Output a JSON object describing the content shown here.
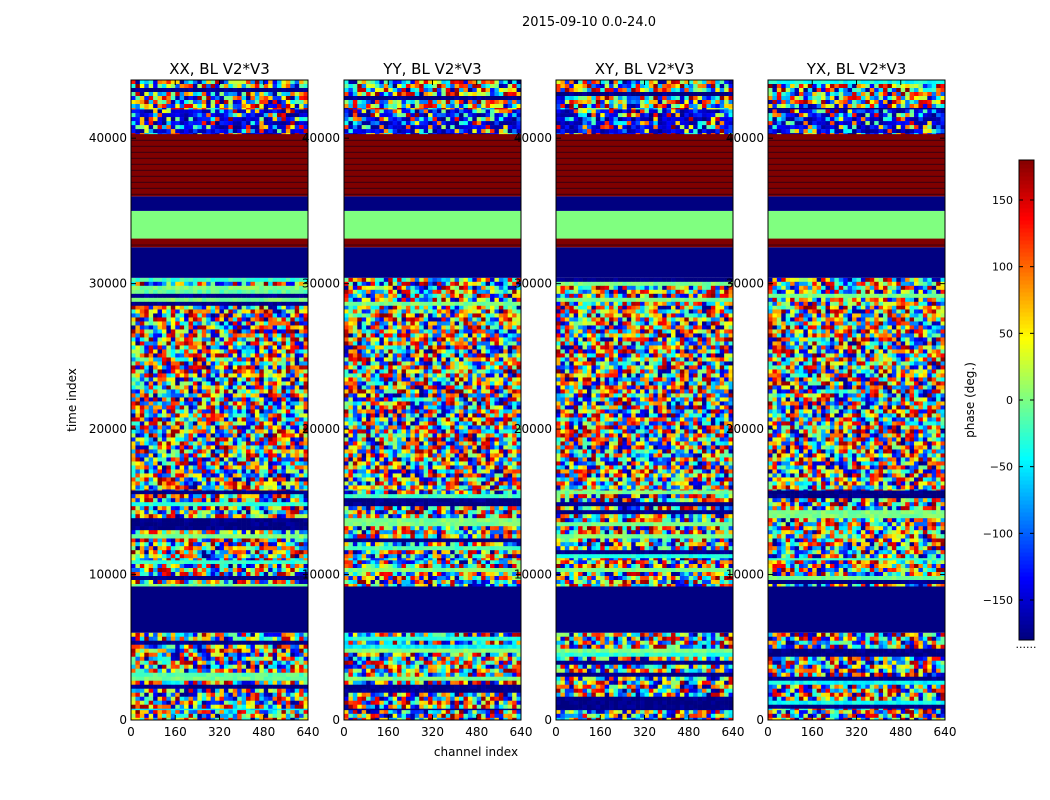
{
  "chart_data": {
    "type": "heatmap",
    "title": "2015-09-10 0.0-24.0",
    "xlabel": "channel index",
    "ylabel": "time index",
    "xlim": [
      0,
      640
    ],
    "ylim": [
      0,
      44000
    ],
    "x_ticks": [
      "0",
      "160",
      "320",
      "480",
      "640"
    ],
    "y_ticks": [
      "0",
      "10000",
      "20000",
      "30000",
      "40000"
    ],
    "x_tick_values": [
      0,
      160,
      320,
      480,
      640
    ],
    "y_tick_values": [
      0,
      10000,
      20000,
      30000,
      40000
    ],
    "colormap": "jet",
    "colorbar": {
      "label": "phase (deg.)",
      "range": [
        -180,
        180
      ],
      "ticks": [
        "−150",
        "−100",
        "−50",
        "0",
        "50",
        "100",
        "150"
      ],
      "tick_values": [
        -150,
        -100,
        -50,
        0,
        50,
        100,
        150
      ],
      "extra_text": "......"
    },
    "panels": [
      {
        "name": "XX, BL V2*V3"
      },
      {
        "name": "YY, BL V2*V3"
      },
      {
        "name": "XY, BL V2*V3"
      },
      {
        "name": "YX, BL V2*V3"
      }
    ],
    "bands": [
      {
        "from": 0,
        "to": 700,
        "kind": "noise"
      },
      {
        "from": 700,
        "to": 6000,
        "kind": "noise-striped"
      },
      {
        "from": 6000,
        "to": 9200,
        "kind": "solid",
        "phase": -180
      },
      {
        "from": 9200,
        "to": 11000,
        "kind": "noise-striped"
      },
      {
        "from": 11000,
        "to": 12500,
        "kind": "noise-striped"
      },
      {
        "from": 12500,
        "to": 15800,
        "kind": "noise-striped"
      },
      {
        "from": 15800,
        "to": 28500,
        "kind": "noise"
      },
      {
        "from": 28500,
        "to": 30400,
        "kind": "noise-striped"
      },
      {
        "from": 30400,
        "to": 32500,
        "kind": "solid",
        "phase": -180
      },
      {
        "from": 32500,
        "to": 33100,
        "kind": "solid",
        "phase": 180
      },
      {
        "from": 33100,
        "to": 35000,
        "kind": "solid",
        "phase": 0
      },
      {
        "from": 35000,
        "to": 36000,
        "kind": "solid",
        "phase": -180
      },
      {
        "from": 36000,
        "to": 40300,
        "kind": "solid",
        "phase": 180
      },
      {
        "from": 40300,
        "to": 42000,
        "kind": "noise-blue"
      },
      {
        "from": 42000,
        "to": 44000,
        "kind": "noise-striped"
      }
    ]
  }
}
